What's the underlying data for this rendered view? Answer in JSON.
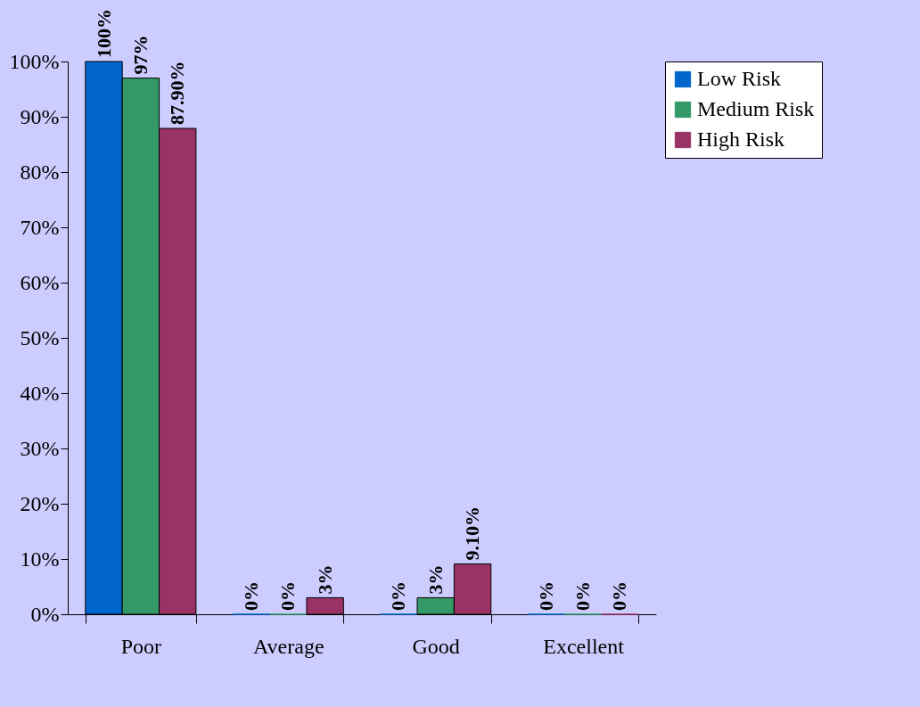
{
  "chart_data": {
    "type": "bar",
    "categories": [
      "Poor",
      "Average",
      "Good",
      "Excellent"
    ],
    "series": [
      {
        "name": "Low Risk",
        "color": "#0066cc",
        "values": [
          100,
          0,
          0,
          0
        ],
        "value_labels": [
          "100%",
          "0%",
          "0%",
          "0%"
        ]
      },
      {
        "name": "Medium Risk",
        "color": "#339966",
        "values": [
          97,
          0,
          3,
          0
        ],
        "value_labels": [
          "97%",
          "0%",
          "3%",
          "0%"
        ]
      },
      {
        "name": "High Risk",
        "color": "#993366",
        "values": [
          87.9,
          3,
          9.1,
          0
        ],
        "value_labels": [
          "87.90%",
          "3%",
          "9.10%",
          "0%"
        ]
      }
    ],
    "ylim": [
      0,
      100
    ],
    "yticks": [
      {
        "value": 0,
        "label": "0%"
      },
      {
        "value": 10,
        "label": "10%"
      },
      {
        "value": 20,
        "label": "20%"
      },
      {
        "value": 30,
        "label": "30%"
      },
      {
        "value": 40,
        "label": "40%"
      },
      {
        "value": 50,
        "label": "50%"
      },
      {
        "value": 60,
        "label": "60%"
      },
      {
        "value": 70,
        "label": "70%"
      },
      {
        "value": 80,
        "label": "80%"
      },
      {
        "value": 90,
        "label": "90%"
      },
      {
        "value": 100,
        "label": "100%"
      }
    ],
    "grid": false,
    "legend": "right"
  }
}
